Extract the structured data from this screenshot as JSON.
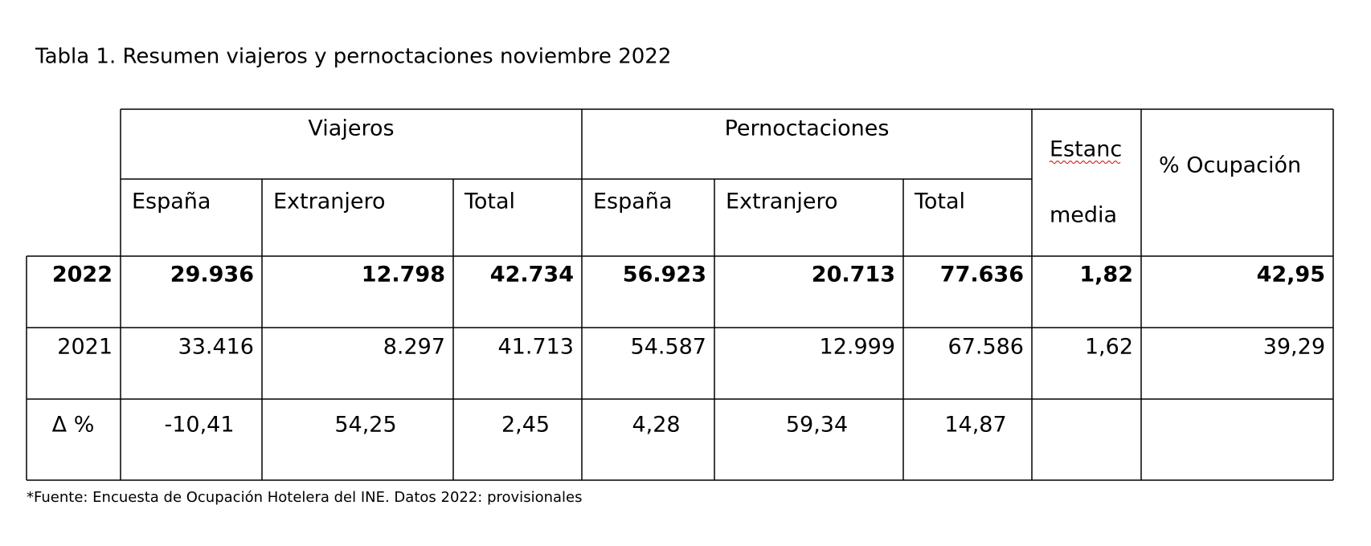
{
  "title": "Tabla 1. Resumen viajeros y pernoctaciones noviembre 2022",
  "table": {
    "group_headers": [
      "Viajeros",
      "Pernoctaciones"
    ],
    "estancia_header": [
      "Estanc",
      "media"
    ],
    "ocupacion_header": "% Ocupación",
    "sub_headers": [
      "España",
      "Extranjero",
      "Total",
      "España",
      "Extranjero",
      "Total"
    ],
    "rows": [
      [
        "2022",
        "29.936",
        "12.798",
        "42.734",
        "56.923",
        "20.713",
        "77.636",
        "1,82",
        "42,95"
      ],
      [
        "2021",
        "33.416",
        "8.297",
        "41.713",
        "54.587",
        "12.999",
        "67.586",
        "1,62",
        "39,29"
      ],
      [
        "Δ %",
        "-10,41",
        "54,25",
        "2,45",
        "4,28",
        "59,34",
        "14,87"
      ]
    ]
  },
  "footnote": "*Fuente: Encuesta de Ocupación Hotelera del INE. Datos 2022: provisionales"
}
